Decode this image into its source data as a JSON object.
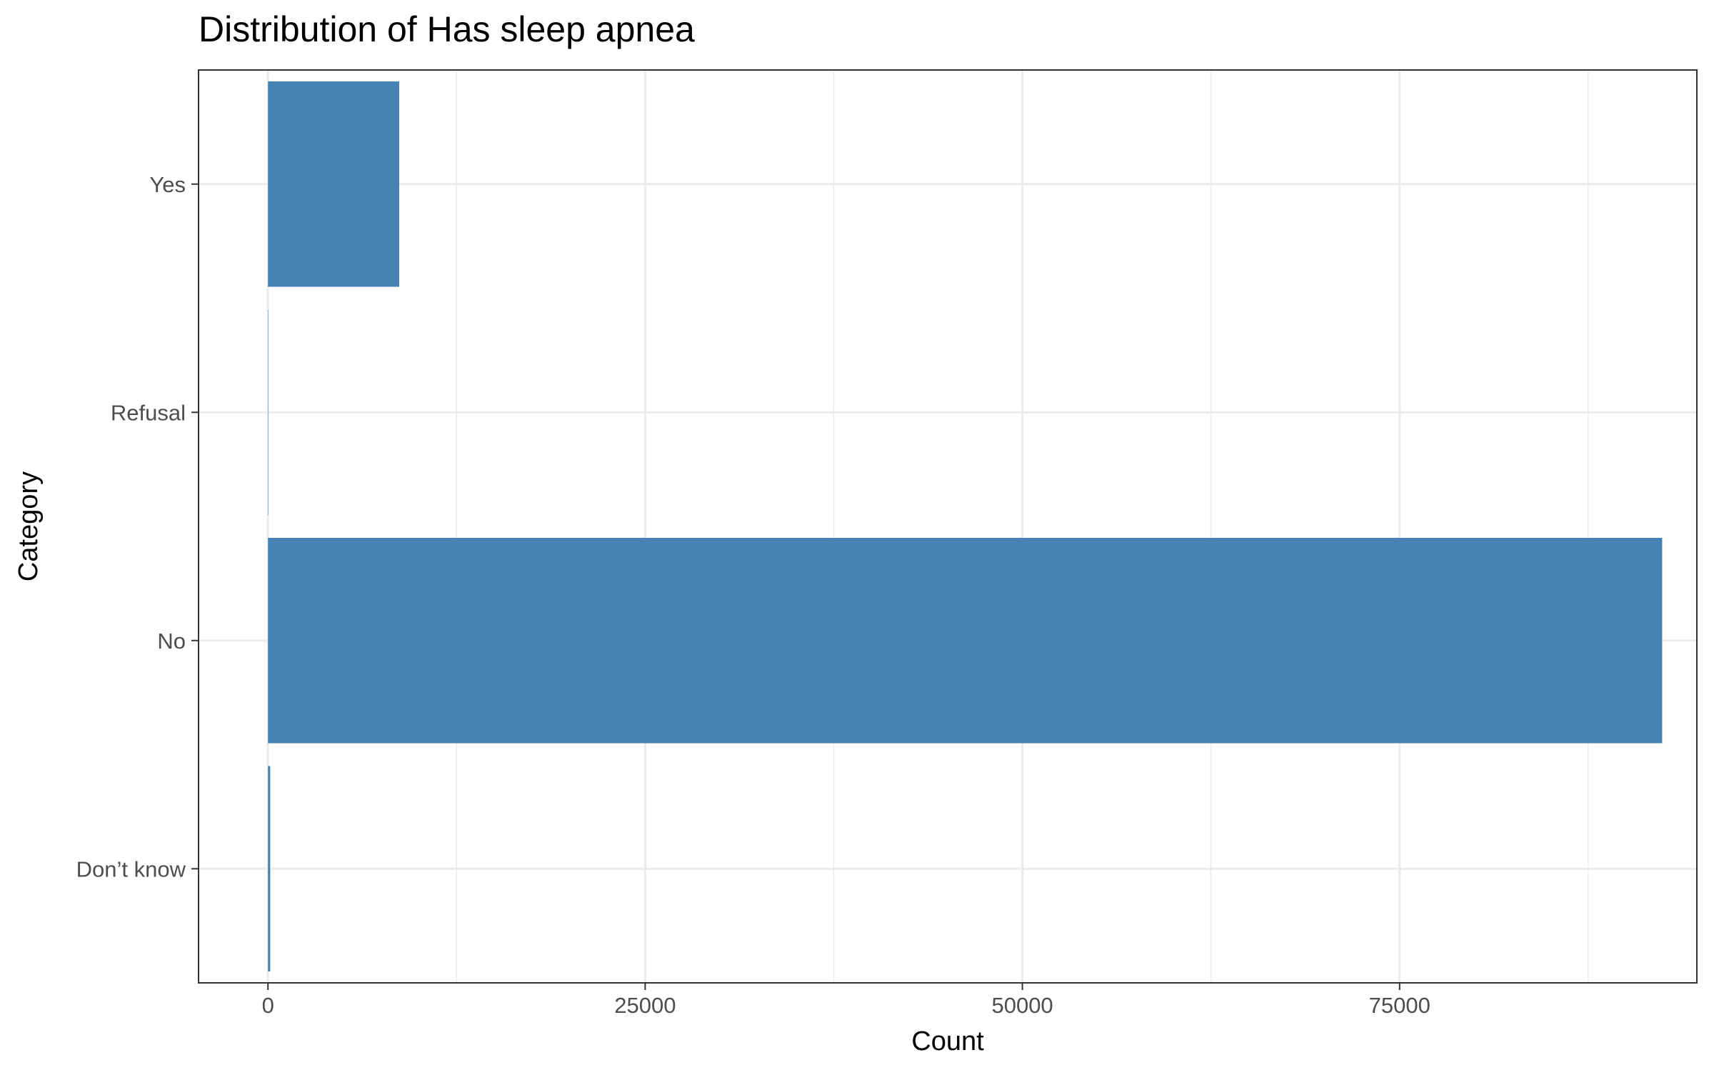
{
  "chart_data": {
    "type": "bar",
    "orientation": "horizontal",
    "title": "Distribution of Has sleep apnea",
    "xlabel": "Count",
    "ylabel": "Category",
    "categories": [
      "Yes",
      "Refusal",
      "No",
      "Don’t know"
    ],
    "values": [
      8700,
      15,
      92400,
      150
    ],
    "xlim": [
      -4600,
      94700
    ],
    "xticks": [
      0,
      25000,
      50000,
      75000
    ],
    "xtick_labels": [
      "0",
      "25000",
      "50000",
      "75000"
    ],
    "grid": true,
    "legend": "none",
    "colors": {
      "bar": "#4682b4",
      "grid": "#ebebeb",
      "panel_border": "#333333",
      "text": "#000000",
      "tick_text": "#4d4d4d"
    }
  }
}
